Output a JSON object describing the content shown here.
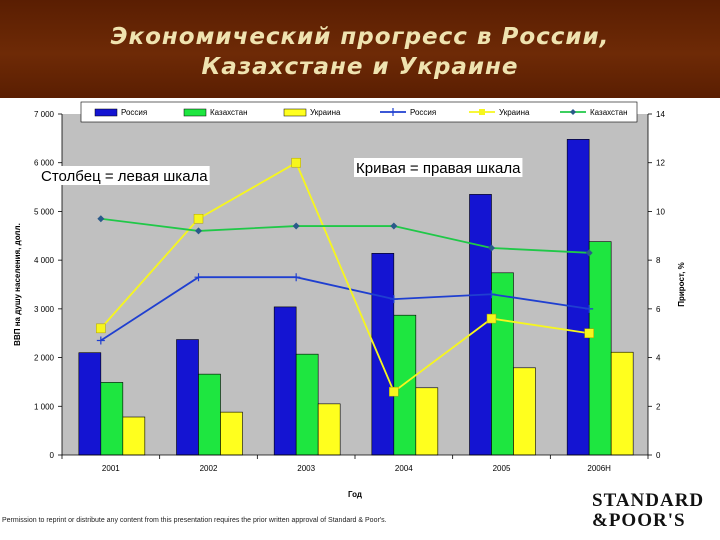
{
  "slide": {
    "title_line1": "Экономический прогресс в России,",
    "title_line2": "Казахстане и Украине",
    "footer": "Permission to reprint or distribute any content from this presentation requires the prior written approval of Standard & Poor's.",
    "logo_line1": "STANDARD",
    "logo_line2": "&POOR'S"
  },
  "chart_data": {
    "type": "bar",
    "categories": [
      "2001",
      "2002",
      "2003",
      "2004",
      "2005",
      "2006Н"
    ],
    "xlabel": "Год",
    "ylabel": "ВВП на душу населения, долл.",
    "y2label": "Прирост, %",
    "ylim": [
      0,
      7000
    ],
    "y2lim": [
      0,
      14
    ],
    "yticks": [
      "0",
      "1 000",
      "2 000",
      "3 000",
      "4 000",
      "5 000",
      "6 000",
      "7 000"
    ],
    "y2ticks": [
      "0",
      "2",
      "4",
      "6",
      "8",
      "10",
      "12",
      "14"
    ],
    "grid": false,
    "legend_position": "top",
    "annotations": [
      "Столбец = левая шкала",
      "Кривая = правая шкала"
    ],
    "bar_series": [
      {
        "name": "Россия",
        "color": "#1414d2",
        "values": [
          2100,
          2370,
          3040,
          4140,
          5350,
          6480
        ]
      },
      {
        "name": "Казахстан",
        "color": "#1ee640",
        "values": [
          1490,
          1660,
          2070,
          2870,
          3740,
          4380
        ]
      },
      {
        "name": "Украина",
        "color": "#ffff1e",
        "values": [
          780,
          880,
          1050,
          1380,
          1790,
          2110
        ]
      }
    ],
    "line_series": [
      {
        "name": "Россия",
        "color": "#1f3fd0",
        "marker": "plus",
        "values": [
          4.7,
          7.3,
          7.3,
          6.4,
          6.6,
          6.0
        ]
      },
      {
        "name": "Украина",
        "color": "#f6f61e",
        "marker": "square",
        "values": [
          5.2,
          9.7,
          12.0,
          2.6,
          5.6,
          5.0
        ]
      },
      {
        "name": "Казахстан",
        "color": "#20c848",
        "marker": "diamond",
        "values": [
          9.7,
          9.2,
          9.4,
          9.4,
          8.5,
          8.3
        ]
      }
    ]
  }
}
